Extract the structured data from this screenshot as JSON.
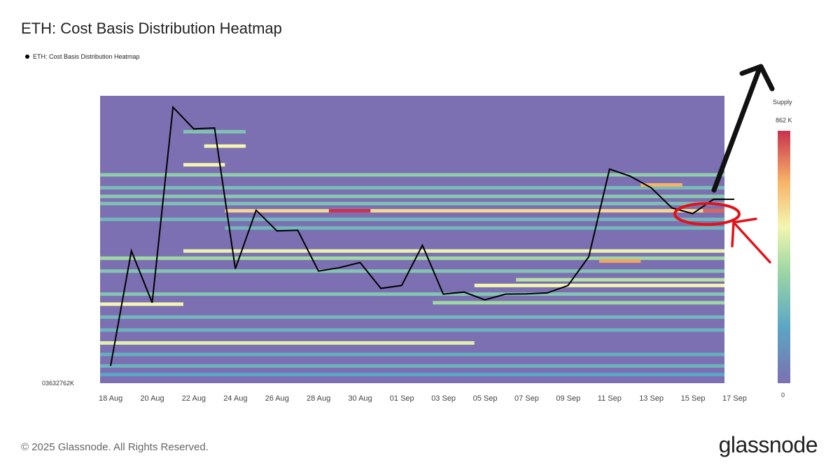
{
  "header": {
    "title": "ETH: Cost Basis Distribution Heatmap"
  },
  "legend": {
    "label": "ETH: Cost Basis Distribution Heatmap"
  },
  "footer": {
    "copyright": "© 2025 Glassnode. All Rights Reserved."
  },
  "brand": {
    "logo_text": "glassnode"
  },
  "colorbar": {
    "title": "Supply",
    "max_label": "862 K",
    "min_label": "0"
  },
  "chart_data": {
    "type": "heatmap",
    "title": "ETH: Cost Basis Distribution Heatmap",
    "x_ticks": [
      "18 Aug",
      "20 Aug",
      "22 Aug",
      "24 Aug",
      "26 Aug",
      "28 Aug",
      "30 Aug",
      "01 Sep",
      "03 Sep",
      "05 Sep",
      "07 Sep",
      "09 Sep",
      "11 Sep",
      "13 Sep",
      "15 Sep",
      "17 Sep"
    ],
    "y_axis_visible_label": "03632762K",
    "supply_range": [
      0,
      862000
    ],
    "colors": {
      "low": "#7c70b2",
      "mid_low": "#5aa6c4",
      "mid": "#9fd8a4",
      "high_mid": "#f3f6b2",
      "high": "#f7b267",
      "max": "#c8324e",
      "price_line": "#000000",
      "annotation_red": "#e3121a",
      "annotation_arrow": "#111111"
    },
    "price_series": {
      "name": "ETH: Cost Basis Distribution Heatmap",
      "dates": [
        "18 Aug",
        "19 Aug",
        "20 Aug",
        "21 Aug",
        "22 Aug",
        "23 Aug",
        "24 Aug",
        "25 Aug",
        "26 Aug",
        "27 Aug",
        "28 Aug",
        "29 Aug",
        "30 Aug",
        "31 Aug",
        "01 Sep",
        "02 Sep",
        "03 Sep",
        "04 Sep",
        "05 Sep",
        "06 Sep",
        "07 Sep",
        "08 Sep",
        "09 Sep",
        "10 Sep",
        "11 Sep",
        "12 Sep",
        "13 Sep",
        "14 Sep",
        "15 Sep",
        "16 Sep",
        "17 Sep"
      ],
      "values": [
        4160,
        4560,
        4380,
        5060,
        4985,
        4988,
        4498,
        4702,
        4630,
        4632,
        4490,
        4502,
        4520,
        4430,
        4440,
        4580,
        4410,
        4417,
        4390,
        4410,
        4411,
        4414,
        4440,
        4540,
        4845,
        4820,
        4780,
        4710,
        4690,
        4740,
        4740
      ]
    },
    "heat_bands": [
      {
        "level": 4825,
        "intensity": 0.4,
        "x_start": "18 Aug",
        "x_end": "17 Sep"
      },
      {
        "level": 4780,
        "intensity": 0.32,
        "x_start": "18 Aug",
        "x_end": "17 Sep"
      },
      {
        "level": 4750,
        "intensity": 0.38,
        "x_start": "18 Aug",
        "x_end": "17 Sep"
      },
      {
        "level": 4725,
        "intensity": 0.34,
        "x_start": "18 Aug",
        "x_end": "17 Sep"
      },
      {
        "level": 4700,
        "intensity": 0.7,
        "x_start": "24 Aug",
        "x_end": "17 Sep"
      },
      {
        "level": 4700,
        "intensity": 1.0,
        "x_start": "29 Aug",
        "x_end": "30 Aug"
      },
      {
        "level": 4700,
        "intensity": 0.92,
        "x_start": "16 Sep",
        "x_end": "17 Sep"
      },
      {
        "level": 4670,
        "intensity": 0.3,
        "x_start": "18 Aug",
        "x_end": "17 Sep"
      },
      {
        "level": 4640,
        "intensity": 0.3,
        "x_start": "24 Aug",
        "x_end": "17 Sep"
      },
      {
        "level": 4560,
        "intensity": 0.6,
        "x_start": "22 Aug",
        "x_end": "17 Sep"
      },
      {
        "level": 4535,
        "intensity": 0.45,
        "x_start": "18 Aug",
        "x_end": "17 Sep"
      },
      {
        "level": 4525,
        "intensity": 0.82,
        "x_start": "11 Sep",
        "x_end": "12 Sep"
      },
      {
        "level": 4490,
        "intensity": 0.36,
        "x_start": "18 Aug",
        "x_end": "17 Sep"
      },
      {
        "level": 4460,
        "intensity": 0.5,
        "x_start": "07 Sep",
        "x_end": "17 Sep"
      },
      {
        "level": 4440,
        "intensity": 0.62,
        "x_start": "05 Sep",
        "x_end": "17 Sep"
      },
      {
        "level": 4410,
        "intensity": 0.36,
        "x_start": "18 Aug",
        "x_end": "17 Sep"
      },
      {
        "level": 4380,
        "intensity": 0.45,
        "x_start": "03 Sep",
        "x_end": "17 Sep"
      },
      {
        "level": 4375,
        "intensity": 0.62,
        "x_start": "18 Aug",
        "x_end": "21 Aug"
      },
      {
        "level": 4330,
        "intensity": 0.3,
        "x_start": "18 Aug",
        "x_end": "17 Sep"
      },
      {
        "level": 4285,
        "intensity": 0.28,
        "x_start": "18 Aug",
        "x_end": "17 Sep"
      },
      {
        "level": 4240,
        "intensity": 0.58,
        "x_start": "18 Aug",
        "x_end": "04 Sep"
      },
      {
        "level": 4200,
        "intensity": 0.26,
        "x_start": "18 Aug",
        "x_end": "17 Sep"
      },
      {
        "level": 4160,
        "intensity": 0.28,
        "x_start": "18 Aug",
        "x_end": "17 Sep"
      },
      {
        "level": 4130,
        "intensity": 0.22,
        "x_start": "18 Aug",
        "x_end": "17 Sep"
      },
      {
        "level": 4975,
        "intensity": 0.35,
        "x_start": "22 Aug",
        "x_end": "24 Aug"
      },
      {
        "level": 4925,
        "intensity": 0.62,
        "x_start": "23 Aug",
        "x_end": "24 Aug"
      },
      {
        "level": 4860,
        "intensity": 0.62,
        "x_start": "22 Aug",
        "x_end": "23 Aug"
      },
      {
        "level": 4790,
        "intensity": 0.8,
        "x_start": "13 Sep",
        "x_end": "14 Sep"
      }
    ]
  }
}
